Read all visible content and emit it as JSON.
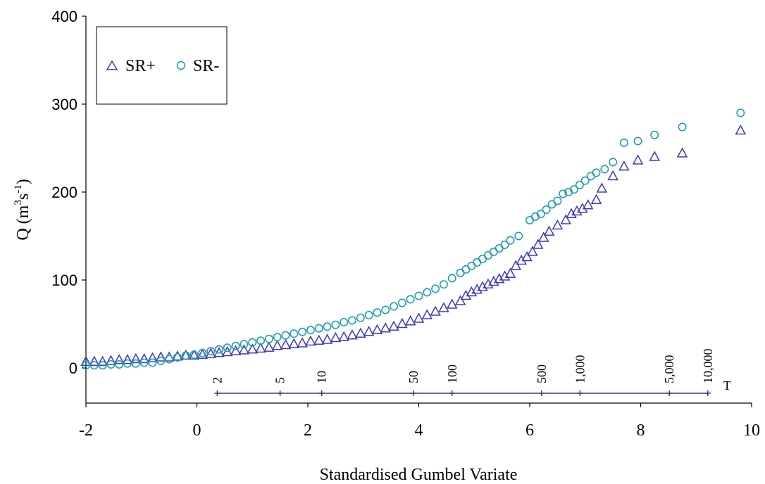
{
  "chart_data": {
    "type": "scatter",
    "title": "",
    "xlabel": "Standardised Gumbel Variate",
    "ylabel_main": "Q (m",
    "ylabel_sup1": "3",
    "ylabel_mid": "s",
    "ylabel_sup2": "-1",
    "ylabel_end": ")",
    "xlim": [
      -2,
      10
    ],
    "ylim": [
      -40,
      400
    ],
    "x_ticks": [
      -2,
      0,
      2,
      4,
      6,
      8,
      10
    ],
    "y_ticks": [
      0,
      100,
      200,
      300,
      400
    ],
    "grid": false,
    "legend_position": "top-left",
    "series": [
      {
        "name": "SR+",
        "marker": "triangle",
        "color": "#3b3bbf",
        "x": [
          -2.0,
          -1.85,
          -1.7,
          -1.55,
          -1.4,
          -1.25,
          -1.1,
          -0.95,
          -0.8,
          -0.65,
          -0.5,
          -0.35,
          -0.2,
          -0.05,
          0.1,
          0.25,
          0.4,
          0.55,
          0.7,
          0.85,
          1.0,
          1.15,
          1.3,
          1.45,
          1.6,
          1.75,
          1.9,
          2.05,
          2.2,
          2.35,
          2.5,
          2.65,
          2.8,
          2.95,
          3.1,
          3.25,
          3.4,
          3.55,
          3.7,
          3.85,
          4.0,
          4.15,
          4.3,
          4.45,
          4.6,
          4.75,
          4.85,
          4.95,
          5.05,
          5.15,
          5.25,
          5.35,
          5.45,
          5.55,
          5.65,
          5.75,
          5.85,
          5.95,
          6.05,
          6.15,
          6.25,
          6.35,
          6.5,
          6.65,
          6.75,
          6.85,
          6.95,
          7.05,
          7.2,
          7.3,
          7.5,
          7.7,
          7.95,
          8.25,
          8.75,
          9.8
        ],
        "y": [
          7,
          7,
          7,
          8,
          9,
          9,
          10,
          10,
          11,
          12,
          12,
          13,
          14,
          14,
          15,
          16,
          17,
          18,
          19,
          20,
          21,
          22,
          23,
          25,
          26,
          27,
          28,
          30,
          31,
          32,
          34,
          35,
          37,
          39,
          41,
          43,
          45,
          47,
          50,
          53,
          56,
          60,
          64,
          68,
          72,
          76,
          82,
          86,
          89,
          92,
          95,
          98,
          101,
          104,
          107,
          116,
          122,
          126,
          132,
          140,
          148,
          155,
          162,
          168,
          175,
          178,
          181,
          185,
          191,
          204,
          218,
          229,
          236,
          240,
          244,
          270
        ]
      },
      {
        "name": "SR-",
        "marker": "circle",
        "color": "#1a9ab0",
        "x": [
          -2.0,
          -1.85,
          -1.7,
          -1.55,
          -1.4,
          -1.25,
          -1.1,
          -0.95,
          -0.8,
          -0.65,
          -0.5,
          -0.35,
          -0.2,
          -0.05,
          0.1,
          0.25,
          0.4,
          0.55,
          0.7,
          0.85,
          1.0,
          1.15,
          1.3,
          1.45,
          1.6,
          1.75,
          1.9,
          2.05,
          2.2,
          2.35,
          2.5,
          2.65,
          2.8,
          2.95,
          3.1,
          3.25,
          3.4,
          3.55,
          3.7,
          3.85,
          4.0,
          4.15,
          4.3,
          4.45,
          4.6,
          4.75,
          4.85,
          4.95,
          5.05,
          5.15,
          5.25,
          5.35,
          5.45,
          5.55,
          5.65,
          5.8,
          6.0,
          6.1,
          6.2,
          6.3,
          6.4,
          6.5,
          6.6,
          6.7,
          6.8,
          6.9,
          7.0,
          7.1,
          7.2,
          7.35,
          7.5,
          7.7,
          7.95,
          8.25,
          8.75,
          9.8
        ],
        "y": [
          3,
          3,
          3,
          4,
          4,
          5,
          5,
          6,
          6,
          8,
          10,
          12,
          14,
          15,
          17,
          19,
          21,
          23,
          25,
          27,
          29,
          31,
          33,
          35,
          37,
          39,
          41,
          43,
          45,
          47,
          49,
          52,
          54,
          57,
          60,
          63,
          66,
          70,
          74,
          78,
          82,
          86,
          90,
          95,
          102,
          108,
          112,
          116,
          120,
          124,
          128,
          132,
          136,
          140,
          145,
          150,
          168,
          172,
          175,
          180,
          186,
          190,
          198,
          200,
          203,
          208,
          213,
          218,
          222,
          226,
          234,
          256,
          258,
          265,
          274,
          290
        ]
      }
    ],
    "return_period": {
      "label": "T",
      "ticks": [
        {
          "label": "2",
          "x": 0.367
        },
        {
          "label": "5",
          "x": 1.5
        },
        {
          "label": "10",
          "x": 2.25
        },
        {
          "label": "50",
          "x": 3.902
        },
        {
          "label": "100",
          "x": 4.6
        },
        {
          "label": "500",
          "x": 6.214
        },
        {
          "label": "1,000",
          "x": 6.907
        },
        {
          "label": "5,000",
          "x": 8.517
        },
        {
          "label": "10,000",
          "x": 9.21
        }
      ]
    }
  }
}
